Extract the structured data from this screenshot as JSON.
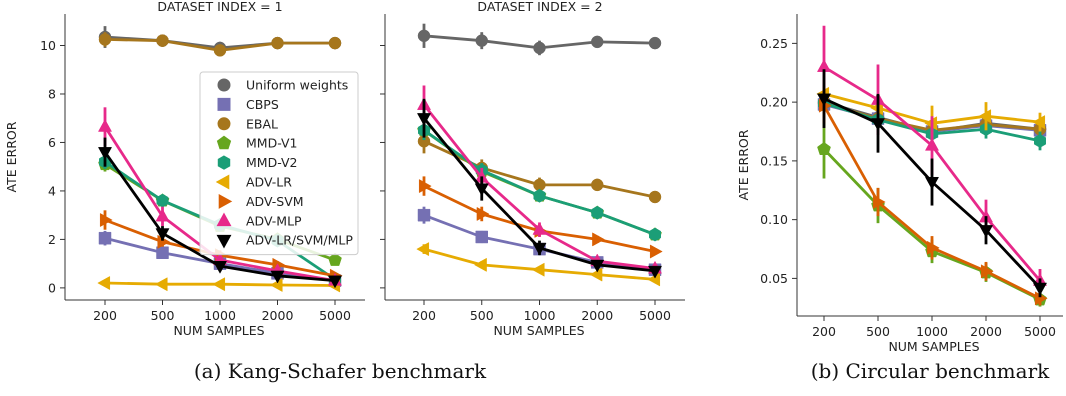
{
  "captions": {
    "a": "(a) Kang-Schafer benchmark",
    "b": "(b) Circular benchmark"
  },
  "chart_data": [
    {
      "type": "line",
      "title": "DATASET INDEX = 1",
      "xlabel": "NUM SAMPLES",
      "ylabel": "ATE ERROR",
      "categories": [
        "200",
        "500",
        "1000",
        "2000",
        "5000"
      ],
      "ylim": [
        -0.5,
        11.3
      ],
      "yticks": [
        0,
        2,
        4,
        6,
        8,
        10
      ],
      "legend": "center-right",
      "series": [
        {
          "name": "Uniform weights",
          "color": "#666666",
          "marker": "circle",
          "values": [
            10.35,
            10.2,
            9.9,
            10.1,
            10.1
          ],
          "err": [
            0.45,
            0.2,
            0.25,
            0.2,
            0.15
          ]
        },
        {
          "name": "CBPS",
          "color": "#7570b3",
          "marker": "square",
          "values": [
            2.05,
            1.45,
            1.0,
            0.6,
            0.3
          ],
          "err": [
            0.3,
            0.2,
            0.15,
            0.1,
            0.1
          ]
        },
        {
          "name": "EBAL",
          "color": "#a6761d",
          "marker": "circle",
          "values": [
            10.25,
            10.2,
            9.8,
            10.1,
            10.1
          ],
          "err": [
            0.3,
            0.25,
            0.2,
            0.15,
            0.1
          ]
        },
        {
          "name": "MMD-V1",
          "color": "#66a61e",
          "marker": "pentagon",
          "values": [
            5.1,
            3.6,
            2.55,
            2.0,
            1.15
          ],
          "err": [
            0.3,
            0.2,
            0.2,
            0.15,
            0.1
          ]
        },
        {
          "name": "MMD-V2",
          "color": "#1b9e77",
          "marker": "hexagon",
          "values": [
            5.2,
            3.6,
            2.6,
            1.95,
            0.35
          ],
          "err": [
            0.3,
            0.2,
            0.2,
            0.15,
            0.1
          ]
        },
        {
          "name": "ADV-LR",
          "color": "#e6ab02",
          "marker": "triangle-left",
          "values": [
            0.2,
            0.15,
            0.15,
            0.12,
            0.1
          ],
          "err": [
            0.05,
            0.05,
            0.05,
            0.04,
            0.04
          ]
        },
        {
          "name": "ADV-SVM",
          "color": "#d95f02",
          "marker": "triangle-right",
          "values": [
            2.8,
            1.9,
            1.35,
            0.95,
            0.5
          ],
          "err": [
            0.4,
            0.2,
            0.2,
            0.15,
            0.1
          ]
        },
        {
          "name": "ADV-MLP",
          "color": "#e7298a",
          "marker": "triangle-up",
          "values": [
            6.65,
            2.95,
            1.15,
            0.7,
            0.3
          ],
          "err": [
            0.8,
            0.4,
            0.2,
            0.15,
            0.1
          ]
        },
        {
          "name": "ADV-LR/SVM/MLP",
          "color": "#000000",
          "marker": "triangle-down",
          "values": [
            5.6,
            2.25,
            0.9,
            0.5,
            0.3
          ],
          "err": [
            0.6,
            0.3,
            0.2,
            0.15,
            0.1
          ]
        }
      ]
    },
    {
      "type": "line",
      "title": "DATASET INDEX = 2",
      "xlabel": "NUM SAMPLES",
      "ylabel": "",
      "categories": [
        "200",
        "500",
        "1000",
        "2000",
        "5000"
      ],
      "ylim": [
        -0.5,
        11.3
      ],
      "yticks": [
        0,
        2,
        4,
        6,
        8,
        10
      ],
      "series": [
        {
          "color": "#666666",
          "marker": "circle",
          "values": [
            10.4,
            10.2,
            9.9,
            10.15,
            10.1
          ],
          "err": [
            0.5,
            0.35,
            0.3,
            0.2,
            0.1
          ]
        },
        {
          "color": "#7570b3",
          "marker": "square",
          "values": [
            3.0,
            2.1,
            1.6,
            1.05,
            0.75
          ],
          "err": [
            0.35,
            0.25,
            0.2,
            0.15,
            0.1
          ]
        },
        {
          "color": "#a6761d",
          "marker": "circle",
          "values": [
            6.05,
            4.95,
            4.25,
            4.25,
            3.75
          ],
          "err": [
            0.5,
            0.35,
            0.3,
            0.25,
            0.2
          ]
        },
        {
          "color": "#66a61e",
          "marker": "pentagon",
          "values": [
            6.5,
            4.8,
            3.8,
            3.1,
            2.2
          ],
          "err": [
            0.4,
            0.3,
            0.2,
            0.2,
            0.1
          ]
        },
        {
          "color": "#1b9e77",
          "marker": "hexagon",
          "values": [
            6.5,
            4.85,
            3.8,
            3.1,
            2.2
          ],
          "err": [
            0.4,
            0.3,
            0.2,
            0.2,
            0.1
          ]
        },
        {
          "color": "#e6ab02",
          "marker": "triangle-left",
          "values": [
            1.6,
            0.95,
            0.75,
            0.55,
            0.35
          ],
          "err": [
            0.2,
            0.15,
            0.1,
            0.1,
            0.08
          ]
        },
        {
          "color": "#d95f02",
          "marker": "triangle-right",
          "values": [
            4.2,
            3.05,
            2.35,
            2.0,
            1.5
          ],
          "err": [
            0.4,
            0.3,
            0.2,
            0.15,
            0.1
          ]
        },
        {
          "color": "#e7298a",
          "marker": "triangle-up",
          "values": [
            7.55,
            4.55,
            2.4,
            1.1,
            0.8
          ],
          "err": [
            0.8,
            0.4,
            0.3,
            0.15,
            0.1
          ]
        },
        {
          "color": "#000000",
          "marker": "triangle-down",
          "values": [
            7.0,
            4.1,
            1.65,
            0.95,
            0.7
          ],
          "err": [
            0.8,
            0.5,
            0.3,
            0.15,
            0.1
          ]
        }
      ]
    },
    {
      "type": "line",
      "title": "",
      "xlabel": "NUM SAMPLES",
      "ylabel": "ATE ERROR",
      "categories": [
        "200",
        "500",
        "1000",
        "2000",
        "5000"
      ],
      "ylim": [
        0.018,
        0.275
      ],
      "yticks": [
        0.05,
        0.1,
        0.15,
        0.2,
        0.25
      ],
      "ytick_labels": [
        "0.05",
        "0.10",
        "0.15",
        "0.20",
        "0.25"
      ],
      "series": [
        {
          "color": "#666666",
          "marker": "circle",
          "values": [
            0.2,
            0.187,
            0.175,
            0.182,
            0.177
          ],
          "err": [
            0.008,
            0.008,
            0.007,
            0.006,
            0.006
          ]
        },
        {
          "color": "#7570b3",
          "marker": "square",
          "values": [
            0.198,
            0.186,
            0.175,
            0.18,
            0.176
          ],
          "err": [
            0.008,
            0.008,
            0.007,
            0.006,
            0.006
          ]
        },
        {
          "color": "#a6761d",
          "marker": "circle",
          "values": [
            0.199,
            0.186,
            0.176,
            0.181,
            0.177
          ],
          "err": [
            0.008,
            0.008,
            0.007,
            0.006,
            0.006
          ]
        },
        {
          "color": "#66a61e",
          "marker": "pentagon",
          "values": [
            0.16,
            0.112,
            0.073,
            0.055,
            0.032
          ],
          "err": [
            0.025,
            0.015,
            0.01,
            0.008,
            0.006
          ]
        },
        {
          "color": "#1b9e77",
          "marker": "hexagon",
          "values": [
            0.199,
            0.185,
            0.173,
            0.177,
            0.167
          ],
          "err": [
            0.008,
            0.01,
            0.008,
            0.008,
            0.008
          ]
        },
        {
          "color": "#e6ab02",
          "marker": "triangle-left",
          "values": [
            0.207,
            0.195,
            0.182,
            0.188,
            0.183
          ],
          "err": [
            0.012,
            0.012,
            0.015,
            0.012,
            0.008
          ]
        },
        {
          "color": "#d95f02",
          "marker": "triangle-right",
          "values": [
            0.197,
            0.115,
            0.076,
            0.056,
            0.033
          ],
          "err": [
            0.015,
            0.012,
            0.01,
            0.008,
            0.006
          ]
        },
        {
          "color": "#e7298a",
          "marker": "triangle-up",
          "values": [
            0.23,
            0.202,
            0.163,
            0.102,
            0.048
          ],
          "err": [
            0.035,
            0.03,
            0.025,
            0.015,
            0.01
          ]
        },
        {
          "color": "#000000",
          "marker": "triangle-down",
          "values": [
            0.203,
            0.182,
            0.132,
            0.091,
            0.042
          ],
          "err": [
            0.025,
            0.025,
            0.02,
            0.012,
            0.008
          ]
        }
      ]
    }
  ]
}
